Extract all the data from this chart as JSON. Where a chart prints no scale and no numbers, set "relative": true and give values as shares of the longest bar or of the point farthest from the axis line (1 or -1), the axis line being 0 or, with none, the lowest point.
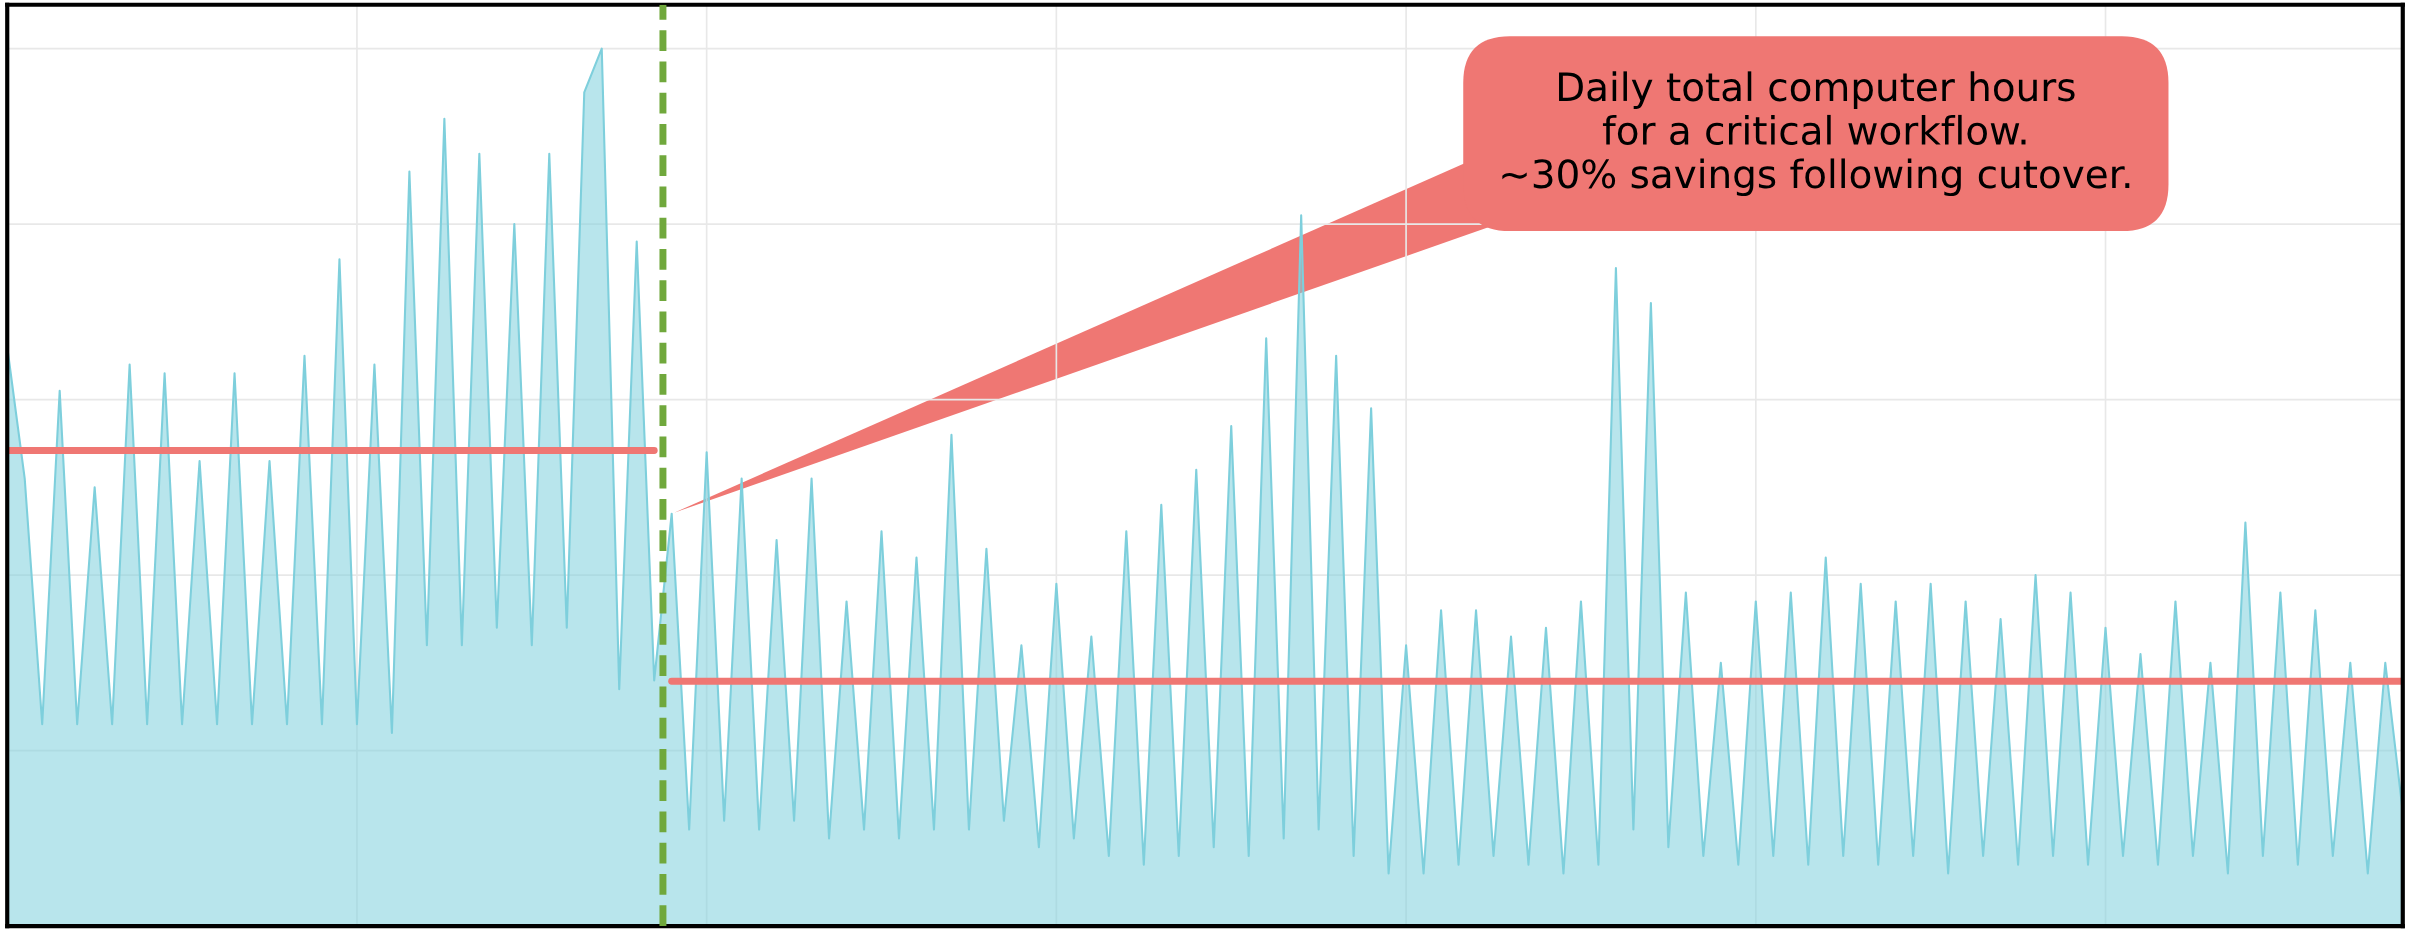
{
  "chart_data": {
    "type": "area",
    "relative": true,
    "grid": true,
    "legend": false,
    "categories": [
      null,
      null,
      null,
      null,
      null,
      null,
      null,
      null,
      null,
      null,
      null,
      null,
      null,
      null,
      null,
      null,
      null,
      null,
      null,
      null,
      null,
      null,
      null,
      null,
      null,
      null,
      null,
      null,
      null,
      null,
      null,
      null,
      null,
      null,
      null,
      null,
      null,
      null,
      null,
      null,
      null,
      null,
      null,
      null,
      null,
      null,
      null,
      null,
      null,
      null,
      null,
      null,
      null,
      null,
      null,
      null,
      null,
      null,
      null,
      null,
      null,
      null,
      null,
      null,
      null,
      null,
      null,
      null,
      null,
      null,
      null,
      null,
      null,
      null,
      null,
      null,
      null,
      null,
      null,
      null,
      null,
      null,
      null,
      null,
      null,
      null,
      null,
      null,
      null,
      null,
      null,
      null,
      null,
      null,
      null,
      null,
      null,
      null,
      null,
      null,
      null,
      null,
      null,
      null,
      null,
      null,
      null,
      null,
      null,
      null,
      null,
      null,
      null,
      null,
      null,
      null,
      null,
      null,
      null,
      null,
      null,
      null,
      null,
      null,
      null,
      null,
      null,
      null,
      null,
      null,
      null,
      null,
      null,
      null,
      null,
      null,
      null,
      null
    ],
    "series": [
      {
        "color": "#7ecfdc",
        "values": [
          0.66,
          0.51,
          0.23,
          0.61,
          0.23,
          0.5,
          0.23,
          0.64,
          0.23,
          0.63,
          0.23,
          0.53,
          0.23,
          0.63,
          0.23,
          0.53,
          0.23,
          0.65,
          0.23,
          0.76,
          0.23,
          0.64,
          0.22,
          0.86,
          0.32,
          0.92,
          0.32,
          0.88,
          0.34,
          0.8,
          0.32,
          0.88,
          0.34,
          0.95,
          1.0,
          0.27,
          0.78,
          0.28,
          0.47,
          0.11,
          0.54,
          0.12,
          0.51,
          0.11,
          0.44,
          0.12,
          0.51,
          0.1,
          0.37,
          0.11,
          0.45,
          0.1,
          0.42,
          0.11,
          0.56,
          0.11,
          0.43,
          0.12,
          0.32,
          0.09,
          0.39,
          0.1,
          0.33,
          0.08,
          0.45,
          0.07,
          0.48,
          0.08,
          0.52,
          0.09,
          0.57,
          0.08,
          0.67,
          0.1,
          0.81,
          0.11,
          0.65,
          0.08,
          0.59,
          0.06,
          0.32,
          0.06,
          0.36,
          0.07,
          0.36,
          0.08,
          0.33,
          0.07,
          0.34,
          0.06,
          0.37,
          0.07,
          0.75,
          0.11,
          0.71,
          0.09,
          0.38,
          0.08,
          0.3,
          0.07,
          0.37,
          0.08,
          0.38,
          0.07,
          0.42,
          0.08,
          0.39,
          0.07,
          0.37,
          0.08,
          0.39,
          0.06,
          0.37,
          0.08,
          0.35,
          0.07,
          0.4,
          0.08,
          0.38,
          0.07,
          0.34,
          0.08,
          0.31,
          0.07,
          0.37,
          0.08,
          0.3,
          0.06,
          0.46,
          0.08,
          0.38,
          0.07,
          0.36,
          0.08,
          0.3,
          0.06,
          0.3,
          0.13
        ]
      },
      {
        "type": "line",
        "color": "#ef7773",
        "values": [
          0.542,
          0.542,
          0.542,
          0.542,
          0.542,
          0.542,
          0.542,
          0.542,
          0.542,
          0.542,
          0.542,
          0.542,
          0.542,
          0.542,
          0.542,
          0.542,
          0.542,
          0.542,
          0.542,
          0.542,
          0.542,
          0.542,
          0.542,
          0.542,
          0.542,
          0.542,
          0.542,
          0.542,
          0.542,
          0.542,
          0.542,
          0.542,
          0.542,
          0.542,
          0.542,
          0.542,
          0.542,
          0.542,
          null,
          null,
          null,
          null,
          null,
          null,
          null,
          null,
          null,
          null,
          null,
          null,
          null,
          null,
          null,
          null,
          null,
          null,
          null,
          null,
          null,
          null,
          null,
          null,
          null,
          null,
          null,
          null,
          null,
          null,
          null,
          null,
          null,
          null,
          null,
          null,
          null,
          null,
          null,
          null,
          null,
          null,
          null,
          null,
          null,
          null,
          null,
          null,
          null,
          null,
          null,
          null,
          null,
          null,
          null,
          null,
          null,
          null,
          null,
          null,
          null,
          null,
          null,
          null,
          null,
          null,
          null,
          null,
          null,
          null,
          null,
          null,
          null,
          null,
          null,
          null,
          null,
          null,
          null,
          null,
          null,
          null,
          null,
          null,
          null,
          null,
          null,
          null,
          null,
          null,
          null,
          null,
          null,
          null,
          null,
          null,
          null,
          null,
          null,
          null
        ]
      },
      {
        "type": "line",
        "color": "#ef7773",
        "values": [
          null,
          null,
          null,
          null,
          null,
          null,
          null,
          null,
          null,
          null,
          null,
          null,
          null,
          null,
          null,
          null,
          null,
          null,
          null,
          null,
          null,
          null,
          null,
          null,
          null,
          null,
          null,
          null,
          null,
          null,
          null,
          null,
          null,
          null,
          null,
          null,
          null,
          null,
          0.279,
          0.279,
          0.279,
          0.279,
          0.279,
          0.279,
          0.279,
          0.279,
          0.279,
          0.279,
          0.279,
          0.279,
          0.279,
          0.279,
          0.279,
          0.279,
          0.279,
          0.279,
          0.279,
          0.279,
          0.279,
          0.279,
          0.279,
          0.279,
          0.279,
          0.279,
          0.279,
          0.279,
          0.279,
          0.279,
          0.279,
          0.279,
          0.279,
          0.279,
          0.279,
          0.279,
          0.279,
          0.279,
          0.279,
          0.279,
          0.279,
          0.279,
          0.279,
          0.279,
          0.279,
          0.279,
          0.279,
          0.279,
          0.279,
          0.279,
          0.279,
          0.279,
          0.279,
          0.279,
          0.279,
          0.279,
          0.279,
          0.279,
          0.279,
          0.279,
          0.279,
          0.279,
          0.279,
          0.279,
          0.279,
          0.279,
          0.279,
          0.279,
          0.279,
          0.279,
          0.279,
          0.279,
          0.279,
          0.279,
          0.279,
          0.279,
          0.279,
          0.279,
          0.279,
          0.279,
          0.279,
          0.279,
          0.279,
          0.279,
          0.279,
          0.279,
          0.279,
          0.279,
          0.279,
          0.279,
          0.279,
          0.279,
          0.279,
          0.279,
          0.279,
          0.279,
          0.279,
          0.279,
          0.279,
          0.279
        ]
      }
    ],
    "annotations": [
      "Daily total computer hours\nfor a critical workflow.\n~30% savings following cutover."
    ]
  }
}
